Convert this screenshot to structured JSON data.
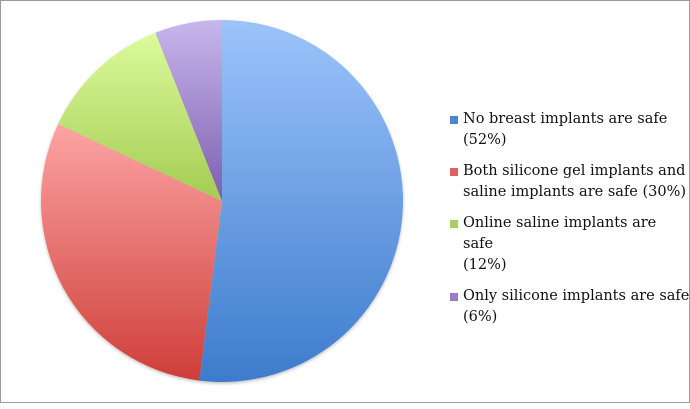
{
  "chart_data": {
    "type": "pie",
    "title": "",
    "categories": [
      "No breast implants are safe",
      "Both silicone gel implants and saline implants are safe",
      "Online saline implants are safe",
      "Only silicone implants are safe"
    ],
    "values": [
      52,
      30,
      12,
      6
    ],
    "unit": "%",
    "colors": [
      "#4f81bd",
      "#c0504d",
      "#9bbb59",
      "#8064a2"
    ],
    "start_angle_deg": 0,
    "direction": "clockwise",
    "legend_position": "right"
  },
  "legend": {
    "items": [
      {
        "label": "No breast implants are safe",
        "pct": "(52%)",
        "color": "#4f81bd"
      },
      {
        "label": "Both silicone gel implants and saline implants are safe",
        "pct": "(30%)",
        "color": "#d9534f"
      },
      {
        "label": "Online saline implants are safe",
        "pct": "(12%)",
        "color": "#a4cc5a"
      },
      {
        "label": "Only silicone implants are safe",
        "pct": "(6%)",
        "color": "#9a7cc8"
      }
    ]
  }
}
